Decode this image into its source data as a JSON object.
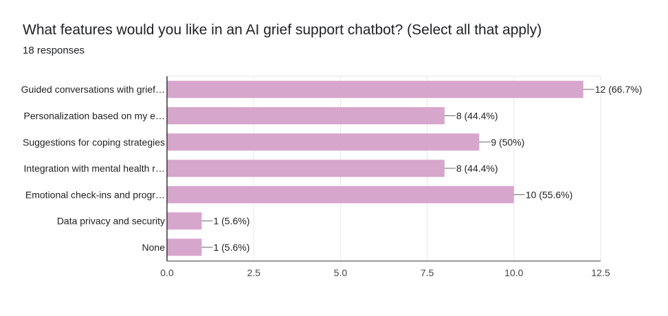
{
  "header": {
    "title": "What features would you like in an AI grief support chatbot? (Select all that apply)",
    "responses": "18 responses"
  },
  "colors": {
    "bar": "#d7a6cc",
    "grid": "#e6e6e6",
    "axis": "#333333",
    "connector": "#666666"
  },
  "chart_data": {
    "type": "bar",
    "orientation": "horizontal",
    "title": "What features would you like in an AI grief support chatbot? (Select all that apply)",
    "subtitle": "18 responses",
    "categories": [
      "Guided conversations with grief…",
      "Personalization based on my e…",
      "Suggestions for coping strategies",
      "Integration with mental health r…",
      "Emotional check-ins and progr…",
      "Data privacy and security",
      "None"
    ],
    "values": [
      12,
      8,
      9,
      8,
      10,
      1,
      1
    ],
    "data_labels": [
      "12 (66.7%)",
      "8 (44.4%)",
      "9 (50%)",
      "8 (44.4%)",
      "10 (55.6%)",
      "1 (5.6%)",
      "1 (5.6%)"
    ],
    "xlim": [
      0,
      12.5
    ],
    "xticks": [
      0,
      2.5,
      5,
      7.5,
      10,
      12.5
    ],
    "xtick_labels": [
      "0.0",
      "2.5",
      "5.0",
      "7.5",
      "10.0",
      "12.5"
    ],
    "grid": true,
    "legend": "none"
  }
}
